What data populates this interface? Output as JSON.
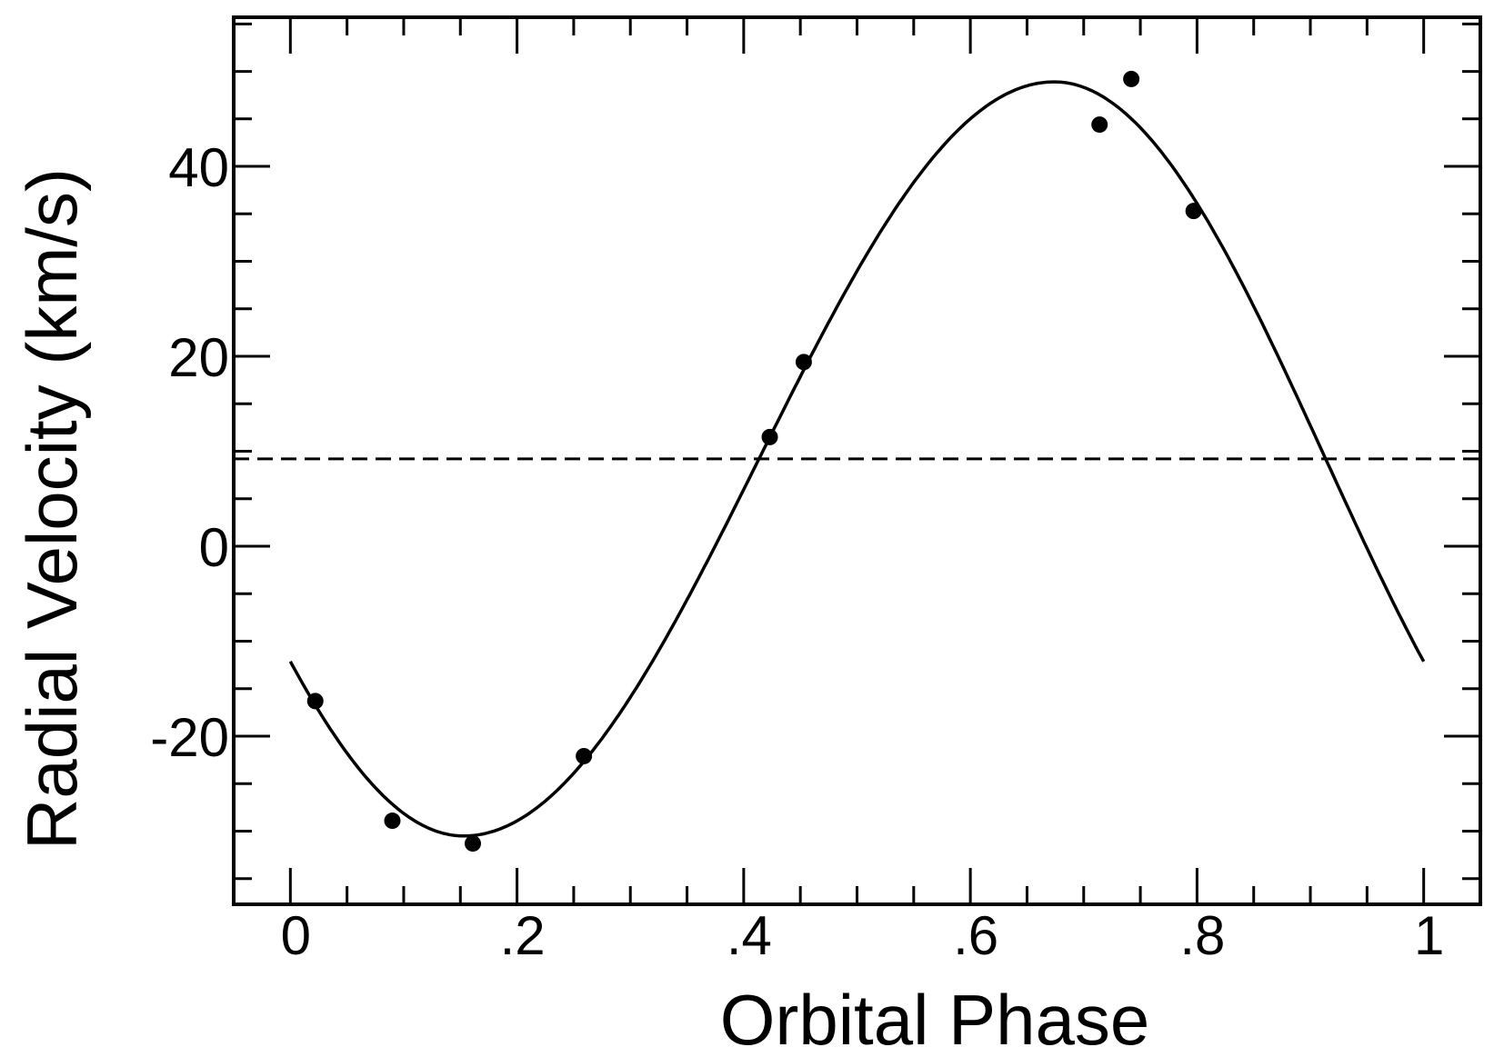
{
  "chart_data": {
    "type": "scatter",
    "title": "",
    "xlabel": "Orbital Phase",
    "ylabel": "Radial Velocity (km/s)",
    "xlim": [
      -0.05,
      1.05
    ],
    "ylim": [
      -37.7,
      55.7
    ],
    "grid": false,
    "legend": null,
    "x_ticks": {
      "major": [
        0,
        0.2,
        0.4,
        0.6,
        0.8,
        1.0
      ],
      "major_labels": [
        "0",
        ".2",
        ".4",
        ".6",
        ".8",
        "1"
      ],
      "minor_step": 0.05
    },
    "y_ticks": {
      "major": [
        -20,
        0,
        20,
        40
      ],
      "major_labels": [
        "-20",
        "0",
        "20",
        "40"
      ],
      "minor_step": 5
    },
    "series": [
      {
        "name": "observations",
        "kind": "points",
        "marker": "filled-circle",
        "color": "#000000",
        "x": [
          0.022,
          0.09,
          0.161,
          0.259,
          0.423,
          0.453,
          0.714,
          0.742,
          0.797
        ],
        "y": [
          -16.3,
          -28.9,
          -31.3,
          -22.1,
          11.5,
          19.4,
          44.4,
          49.2,
          35.3
        ]
      },
      {
        "name": "orbital fit",
        "kind": "line",
        "style": "solid",
        "color": "#000000",
        "model": {
          "gamma": 9.2,
          "K": 39.7,
          "phase_min": 0.153,
          "phase_max": 0.674
        },
        "x": [
          0.0,
          0.05,
          0.1,
          0.153,
          0.2,
          0.25,
          0.3,
          0.35,
          0.409,
          0.45,
          0.5,
          0.55,
          0.6,
          0.674,
          0.7,
          0.75,
          0.8,
          0.85,
          0.916,
          0.95,
          1.0
        ],
        "y": [
          -12.1,
          -21.6,
          -28.3,
          -30.5,
          -29.5,
          -26.1,
          -20.0,
          -12.0,
          9.2,
          18.7,
          30.0,
          39.4,
          45.9,
          48.9,
          48.6,
          45.8,
          38.6,
          28.0,
          9.2,
          -1.4,
          -12.1
        ]
      },
      {
        "name": "systemic velocity",
        "kind": "hline",
        "style": "dashed",
        "color": "#000000",
        "y": 9.2
      }
    ]
  },
  "axes": {
    "x_title": "Orbital Phase",
    "y_title": "Radial Velocity (km/s)"
  }
}
